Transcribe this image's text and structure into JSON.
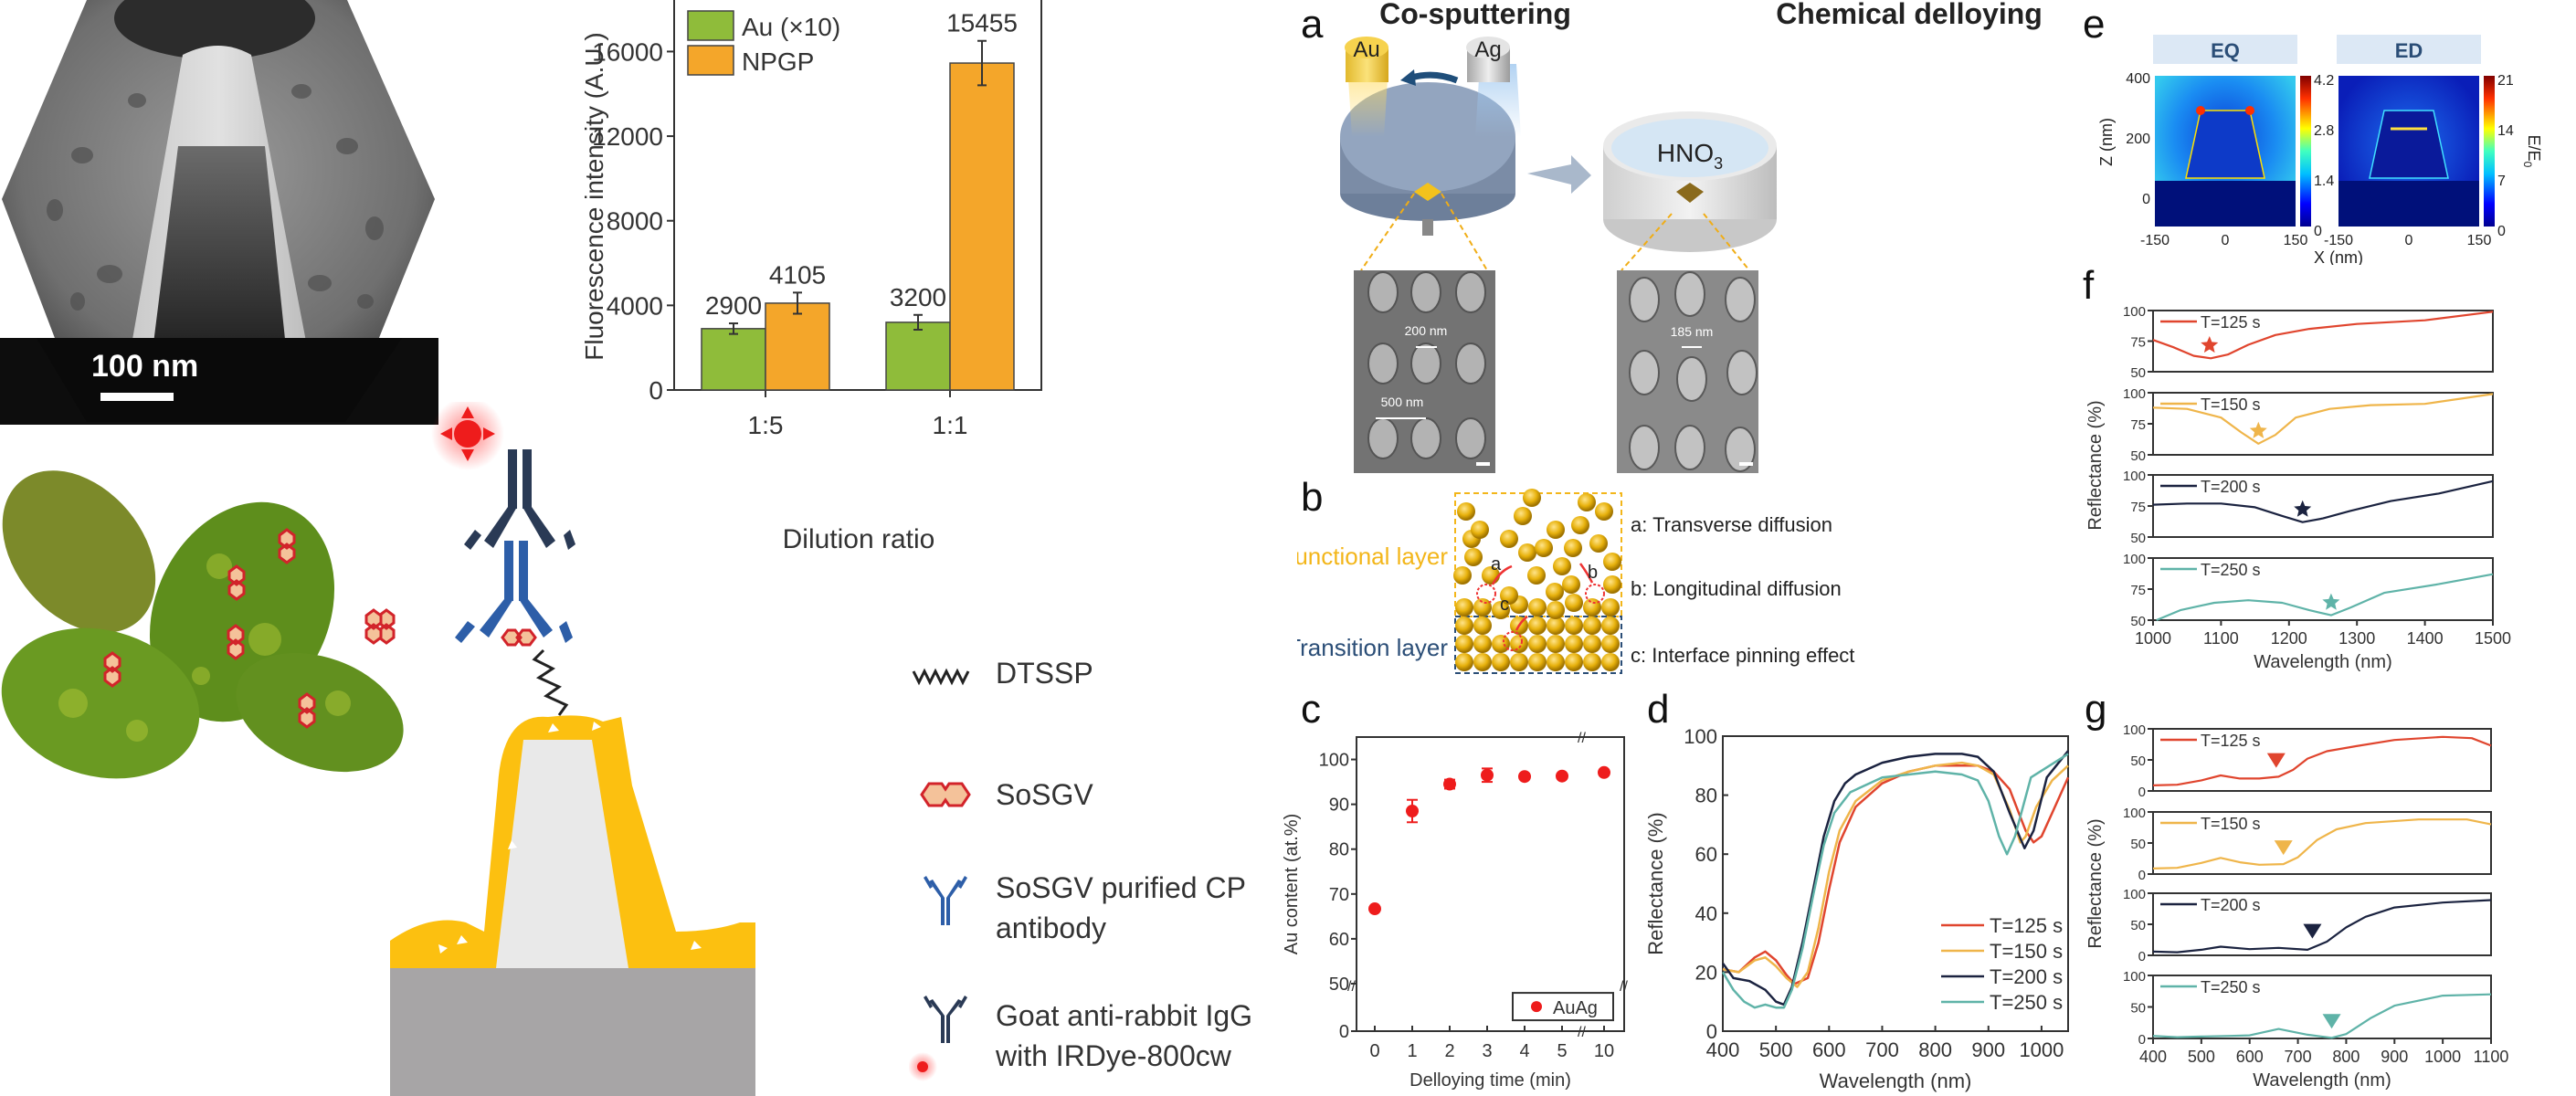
{
  "figure": {
    "panel_labels": [
      "a",
      "b",
      "c",
      "d",
      "e",
      "f",
      "g"
    ],
    "sem_inset": {
      "scale_bar_label": "100 nm"
    },
    "schematic": {
      "legend": [
        {
          "icon": "dtssp-linker-icon",
          "label": "DTSSP"
        },
        {
          "icon": "sosgv-virus-icon",
          "label": "SoSGV"
        },
        {
          "icon": "cp-antibody-icon",
          "label": "SoSGV purified CP antibody"
        },
        {
          "icon": "goat-igg-irdye-icon",
          "label": "Goat anti-rabbit IgG with IRDye-800cw"
        }
      ]
    },
    "panel_a": {
      "left_title": "Co-sputtering",
      "right_title": "Chemical delloying",
      "target_au": "Au",
      "target_ag": "Ag",
      "solution": "HNO",
      "solution_subscript": "3",
      "sem_left": {
        "diameter_label": "200 nm",
        "pitch_label": "500 nm"
      },
      "sem_right": {
        "diameter_label": "185 nm"
      }
    },
    "panel_b": {
      "functional_layer": "Functional layer",
      "transition_layer": "Transition layer",
      "markers": [
        "a",
        "b",
        "c"
      ],
      "notes": [
        "a: Transverse diffusion",
        "b: Longitudinal diffusion",
        "c: Interface pinning effect"
      ]
    },
    "panel_e": {
      "maps": [
        {
          "title": "EQ",
          "colorbar_ticks": [
            "4.2",
            "2.8",
            "1.4",
            "0"
          ]
        },
        {
          "title": "ED",
          "colorbar_ticks": [
            "21",
            "14",
            "7",
            "0"
          ]
        }
      ],
      "ylabel": "Z (nm)",
      "xlabel": "X (nm)",
      "colorbar_label": "E/E",
      "colorbar_label_sub": "0",
      "yticks": [
        "400",
        "200",
        "0"
      ],
      "xticks": [
        "-150",
        "0",
        "150"
      ]
    },
    "colors": {
      "au_green": "#8fbc3a",
      "npgp_orange": "#f4a62a",
      "t125": "#e0452e",
      "t150": "#efb54a",
      "t200": "#1b2340",
      "t250": "#5fb3a8",
      "marker_red": "#ee1c1c",
      "gold": "#fcc010",
      "navy": "#2a3a55",
      "antibody_blue": "#2d5ea8"
    }
  },
  "chart_data": [
    {
      "id": "fluorescence",
      "type": "bar",
      "title": "",
      "xlabel": "Dilution ratio",
      "ylabel": "Fluorescence intensity (A.U.)",
      "categories": [
        "1:5",
        "1:1"
      ],
      "series": [
        {
          "name": "Au (×10)",
          "values": [
            2900,
            3200
          ],
          "errors": [
            250,
            350
          ],
          "labels": [
            "2900",
            "3200"
          ]
        },
        {
          "name": "NPGP",
          "values": [
            4105,
            15455
          ],
          "errors": [
            500,
            1050
          ],
          "labels": [
            "4105",
            "15455"
          ]
        }
      ],
      "yticks": [
        0,
        4000,
        8000,
        12000,
        16000
      ],
      "ylim": [
        0,
        19300
      ],
      "legend": "top-left"
    },
    {
      "id": "au-content",
      "type": "scatter",
      "xlabel": "Delloying time (min)",
      "ylabel": "Au content (at.%)",
      "x_labels": [
        "0",
        "1",
        "2",
        "3",
        "4",
        "5",
        "10"
      ],
      "series": [
        {
          "name": "AuAg",
          "y": [
            66.7,
            88.5,
            94.5,
            96.5,
            96.2,
            96.3,
            97.1
          ],
          "errors": [
            0.5,
            2.5,
            1.0,
            1.5,
            0.6,
            0.5,
            0.6
          ]
        }
      ],
      "yticks": [
        "0",
        "50",
        "60",
        "70",
        "80",
        "90",
        "100"
      ],
      "ylim": [
        0,
        105
      ],
      "axis_break": {
        "y": 50,
        "x_between": [
          "5",
          "10"
        ]
      },
      "legend": "bottom-right"
    },
    {
      "id": "reflectance-visnir",
      "type": "line",
      "xlabel": "Wavelength (nm)",
      "ylabel": "Reflectance (%)",
      "xlim": [
        400,
        1050
      ],
      "ylim": [
        0,
        100
      ],
      "xticks": [
        400,
        500,
        600,
        700,
        800,
        900,
        1000
      ],
      "yticks": [
        0,
        20,
        40,
        60,
        80,
        100
      ],
      "legend": "bottom-right",
      "series": [
        {
          "name": "T=125 s",
          "x": [
            400,
            430,
            460,
            480,
            500,
            520,
            535,
            560,
            580,
            600,
            620,
            650,
            700,
            750,
            800,
            850,
            880,
            910,
            940,
            970,
            985,
            1000,
            1020,
            1050
          ],
          "y": [
            21,
            20,
            25,
            27,
            24,
            19,
            16,
            18,
            30,
            48,
            64,
            76,
            84,
            88,
            90,
            90,
            90,
            88,
            82,
            68,
            64,
            66,
            74,
            86
          ]
        },
        {
          "name": "T=150 s",
          "x": [
            400,
            430,
            460,
            480,
            500,
            520,
            540,
            560,
            580,
            600,
            620,
            650,
            700,
            750,
            800,
            850,
            880,
            910,
            940,
            960,
            970,
            990,
            1020,
            1050
          ],
          "y": [
            21,
            20,
            24,
            25,
            22,
            18,
            15,
            20,
            35,
            54,
            68,
            78,
            85,
            88,
            90,
            91,
            90,
            87,
            75,
            64,
            66,
            76,
            85,
            90
          ]
        },
        {
          "name": "T=200 s",
          "x": [
            400,
            420,
            450,
            480,
            500,
            515,
            530,
            550,
            570,
            590,
            610,
            630,
            650,
            700,
            750,
            800,
            850,
            880,
            910,
            940,
            968,
            985,
            1010,
            1050
          ],
          "y": [
            23,
            18,
            17,
            14,
            10,
            9,
            15,
            30,
            48,
            66,
            78,
            84,
            87,
            91,
            93,
            94,
            94,
            93,
            88,
            74,
            62,
            68,
            86,
            95
          ]
        },
        {
          "name": "T=250 s",
          "x": [
            400,
            420,
            440,
            460,
            480,
            500,
            515,
            530,
            550,
            570,
            590,
            610,
            640,
            700,
            750,
            800,
            850,
            880,
            900,
            920,
            935,
            950,
            980,
            1050
          ],
          "y": [
            20,
            14,
            10,
            8,
            9,
            8,
            8,
            14,
            28,
            46,
            63,
            74,
            81,
            86,
            87,
            88,
            87,
            85,
            78,
            66,
            60,
            66,
            86,
            94
          ]
        }
      ]
    },
    {
      "id": "reflectance-nir-sim",
      "type": "line",
      "xlabel": "Wavelength (nm)",
      "ylabel": "Reflectance (%)",
      "xlim": [
        1000,
        1500
      ],
      "xticks": [
        1000,
        1100,
        1200,
        1300,
        1400,
        1500
      ],
      "yticks": [
        50,
        75,
        100
      ],
      "ylim": [
        50,
        100
      ],
      "legend": "top-left",
      "series": [
        {
          "name": "T=125 s",
          "x": [
            1000,
            1030,
            1060,
            1085,
            1110,
            1140,
            1180,
            1230,
            1300,
            1400,
            1500
          ],
          "y": [
            76,
            70,
            63,
            61,
            64,
            72,
            80,
            85,
            89,
            92,
            99
          ],
          "marker": {
            "shape": "star",
            "x": 1083
          }
        },
        {
          "name": "T=150 s",
          "x": [
            1000,
            1050,
            1100,
            1130,
            1155,
            1180,
            1210,
            1260,
            1320,
            1400,
            1500
          ],
          "y": [
            88,
            87,
            80,
            68,
            59,
            66,
            80,
            87,
            90,
            91,
            99
          ],
          "marker": {
            "shape": "star",
            "x": 1155
          }
        },
        {
          "name": "T=200 s",
          "x": [
            1000,
            1050,
            1100,
            1150,
            1190,
            1220,
            1250,
            1290,
            1350,
            1420,
            1500
          ],
          "y": [
            76,
            77,
            77,
            74,
            67,
            62,
            65,
            71,
            79,
            85,
            95
          ],
          "marker": {
            "shape": "star",
            "x": 1220
          }
        },
        {
          "name": "T=250 s",
          "x": [
            1005,
            1040,
            1090,
            1140,
            1190,
            1230,
            1262,
            1290,
            1340,
            1420,
            1500
          ],
          "y": [
            50,
            58,
            64,
            66,
            64,
            58,
            54,
            60,
            72,
            79,
            87
          ],
          "marker": {
            "shape": "star",
            "x": 1262
          }
        }
      ]
    },
    {
      "id": "reflectance-sim-visnir",
      "type": "line",
      "xlabel": "Wavelength (nm)",
      "ylabel": "Reflectance (%)",
      "xlim": [
        400,
        1100
      ],
      "xticks": [
        400,
        500,
        600,
        700,
        800,
        900,
        1000,
        1100
      ],
      "yticks": [
        0,
        50,
        100
      ],
      "ylim": [
        0,
        100
      ],
      "legend": "top-left",
      "series": [
        {
          "name": "T=125 s",
          "x": [
            400,
            450,
            500,
            540,
            580,
            620,
            660,
            690,
            720,
            760,
            820,
            900,
            1000,
            1060,
            1100
          ],
          "y": [
            9,
            10,
            17,
            25,
            20,
            20,
            23,
            34,
            52,
            64,
            72,
            82,
            87,
            85,
            73
          ],
          "marker": {
            "shape": "triangle-down",
            "x": 655
          }
        },
        {
          "name": "T=150 s",
          "x": [
            400,
            450,
            500,
            540,
            580,
            620,
            670,
            700,
            740,
            780,
            840,
            950,
            1050,
            1100
          ],
          "y": [
            9,
            10,
            18,
            26,
            19,
            15,
            16,
            27,
            55,
            72,
            82,
            88,
            88,
            80
          ],
          "marker": {
            "shape": "triangle-down",
            "x": 670
          }
        },
        {
          "name": "T=200 s",
          "x": [
            400,
            450,
            500,
            540,
            600,
            660,
            720,
            760,
            800,
            840,
            900,
            1000,
            1100
          ],
          "y": [
            6,
            5,
            9,
            14,
            10,
            12,
            9,
            22,
            45,
            62,
            77,
            85,
            89
          ],
          "marker": {
            "shape": "triangle-down",
            "x": 730
          }
        },
        {
          "name": "T=250 s",
          "x": [
            400,
            450,
            500,
            560,
            600,
            660,
            720,
            770,
            800,
            850,
            900,
            1000,
            1100
          ],
          "y": [
            4,
            2,
            3,
            4,
            5,
            15,
            6,
            1,
            7,
            32,
            52,
            68,
            70
          ],
          "marker": {
            "shape": "triangle-down",
            "x": 770
          }
        }
      ]
    }
  ]
}
